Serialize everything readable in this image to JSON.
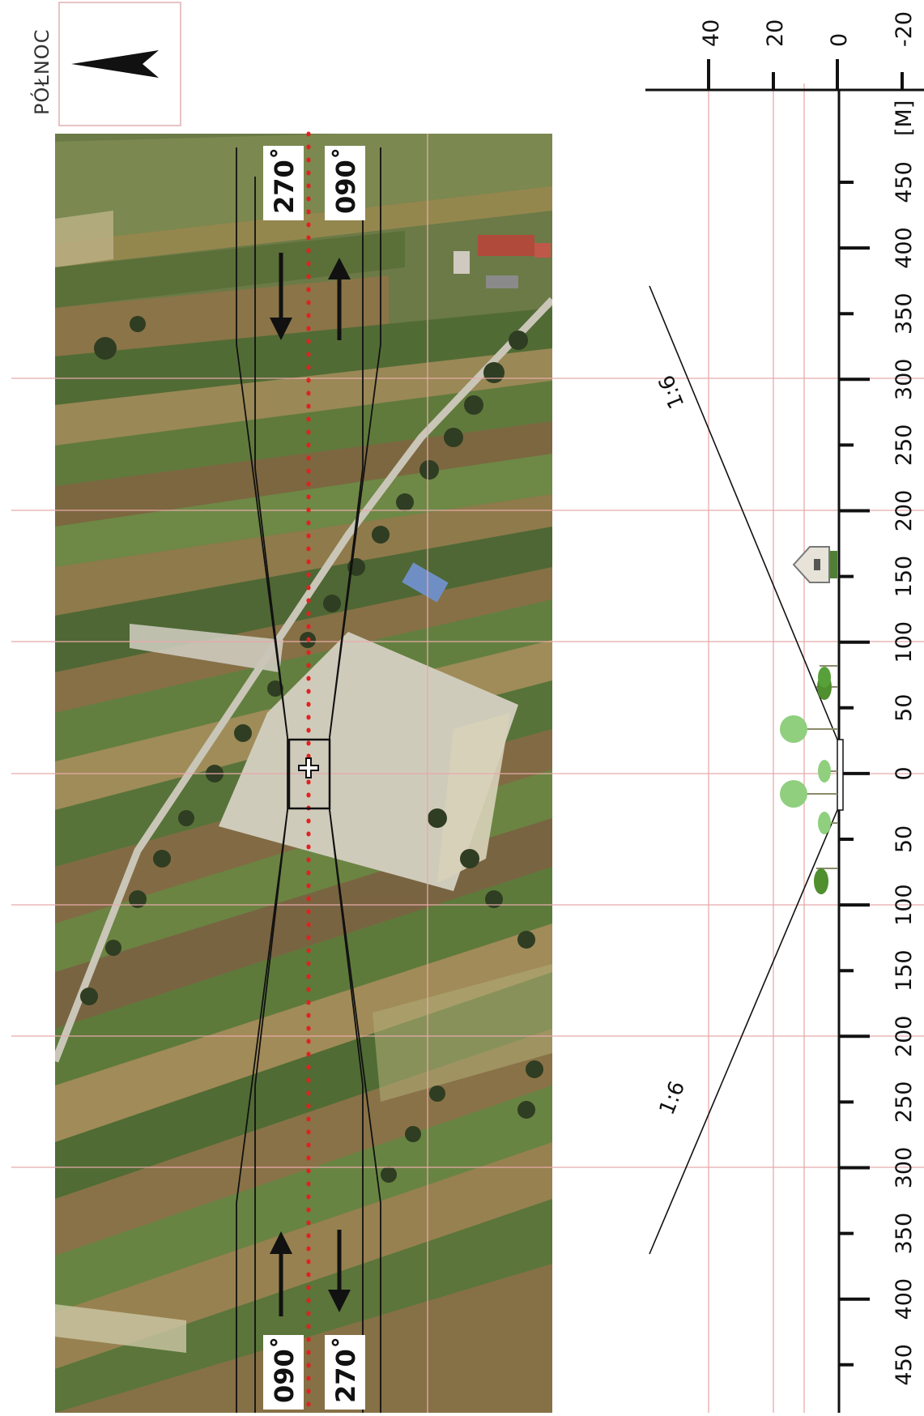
{
  "north": {
    "label": "PÓŁNOC"
  },
  "headings": {
    "upper_left": "270˚",
    "upper_right": "090˚",
    "lower_left": "090˚",
    "lower_right": "270˚"
  },
  "height_scale": {
    "unit": "[M]",
    "values": [
      "40",
      "20",
      "0",
      "-20"
    ]
  },
  "distance_scale": {
    "labels": [
      "450",
      "400",
      "350",
      "300",
      "250",
      "200",
      "150",
      "100",
      "50",
      "0",
      "50",
      "100",
      "150",
      "200",
      "250",
      "300",
      "350",
      "400",
      "450"
    ]
  },
  "slopes": {
    "upper": "1:6",
    "lower": "1:6"
  },
  "icons": {
    "north_arrow": "north-arrow-icon",
    "arp": "crosshair-icon",
    "building": "building-icon",
    "tree": "tree-icon"
  },
  "colors": {
    "grid": "#e7aaaa",
    "centerline": "#e32020",
    "field_green": "#5f7a3e",
    "field_brown": "#8a6a42",
    "road": "#c9c6b8"
  }
}
